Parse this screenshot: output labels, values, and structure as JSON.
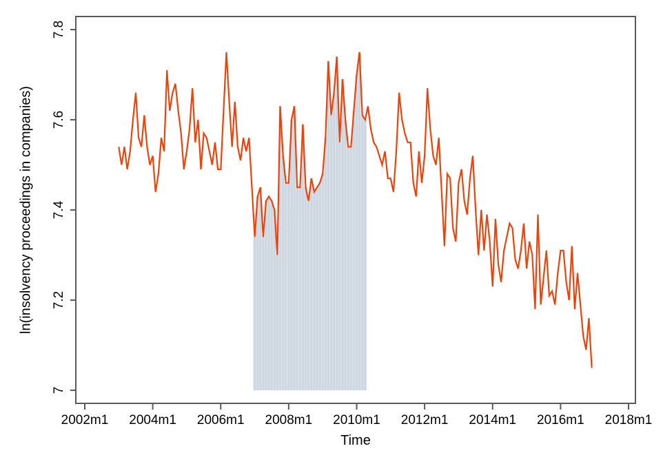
{
  "figure": {
    "background_color": "#ffffff",
    "frame_color": "#5a5a5a",
    "text_color": "#000000"
  },
  "chart_data": {
    "type": "line",
    "title": "",
    "xlabel": "Time",
    "ylabel": "ln(insolvency proceedings in companies)",
    "x_ticks": [
      "2002m1",
      "2004m1",
      "2006m1",
      "2008m1",
      "2010m1",
      "2012m1",
      "2014m1",
      "2016m1",
      "2018m1"
    ],
    "y_ticks": [
      "7",
      "7.2",
      "7.4",
      "7.6",
      "7.8"
    ],
    "y_tick_values": [
      7,
      7.2,
      7.4,
      7.6,
      7.8
    ],
    "ylim": [
      6.97,
      7.83
    ],
    "xlim": [
      "2001m10",
      "2018m3"
    ],
    "grid": false,
    "legend": "none",
    "line_color": "#e8450c",
    "series": [
      {
        "name": "ln(insolvency proceedings in companies)",
        "start": "2003m1",
        "frequency": "monthly",
        "values": [
          7.54,
          7.5,
          7.54,
          7.49,
          7.53,
          7.6,
          7.66,
          7.56,
          7.54,
          7.61,
          7.54,
          7.5,
          7.52,
          7.44,
          7.48,
          7.56,
          7.53,
          7.71,
          7.62,
          7.66,
          7.68,
          7.62,
          7.57,
          7.49,
          7.53,
          7.58,
          7.67,
          7.55,
          7.6,
          7.49,
          7.57,
          7.56,
          7.53,
          7.5,
          7.55,
          7.49,
          7.49,
          7.62,
          7.75,
          7.64,
          7.54,
          7.64,
          7.54,
          7.51,
          7.56,
          7.53,
          7.56,
          7.45,
          7.34,
          7.43,
          7.45,
          7.34,
          7.42,
          7.43,
          7.42,
          7.4,
          7.3,
          7.63,
          7.52,
          7.46,
          7.46,
          7.6,
          7.63,
          7.45,
          7.45,
          7.59,
          7.45,
          7.42,
          7.47,
          7.44,
          7.45,
          7.46,
          7.48,
          7.56,
          7.73,
          7.61,
          7.66,
          7.74,
          7.55,
          7.69,
          7.6,
          7.54,
          7.54,
          7.62,
          7.7,
          7.75,
          7.61,
          7.6,
          7.63,
          7.58,
          7.55,
          7.54,
          7.52,
          7.5,
          7.53,
          7.47,
          7.47,
          7.44,
          7.53,
          7.66,
          7.6,
          7.57,
          7.55,
          7.55,
          7.46,
          7.43,
          7.53,
          7.46,
          7.52,
          7.67,
          7.58,
          7.52,
          7.5,
          7.56,
          7.44,
          7.32,
          7.48,
          7.47,
          7.36,
          7.33,
          7.46,
          7.49,
          7.42,
          7.39,
          7.47,
          7.52,
          7.4,
          7.3,
          7.4,
          7.31,
          7.39,
          7.33,
          7.23,
          7.38,
          7.28,
          7.24,
          7.31,
          7.34,
          7.37,
          7.36,
          7.29,
          7.27,
          7.31,
          7.37,
          7.27,
          7.33,
          7.3,
          7.18,
          7.39,
          7.19,
          7.25,
          7.31,
          7.21,
          7.22,
          7.19,
          7.26,
          7.31,
          7.31,
          7.24,
          7.2,
          7.32,
          7.18,
          7.26,
          7.19,
          7.12,
          7.09,
          7.16,
          7.05
        ]
      }
    ],
    "shaded_band": {
      "start": "2007m1",
      "end": "2010m4",
      "baseline": 7.0,
      "style": "vertical monthly bars from baseline up to series value",
      "color": "#ccd7e2",
      "color_light": "#dae1e9"
    }
  }
}
